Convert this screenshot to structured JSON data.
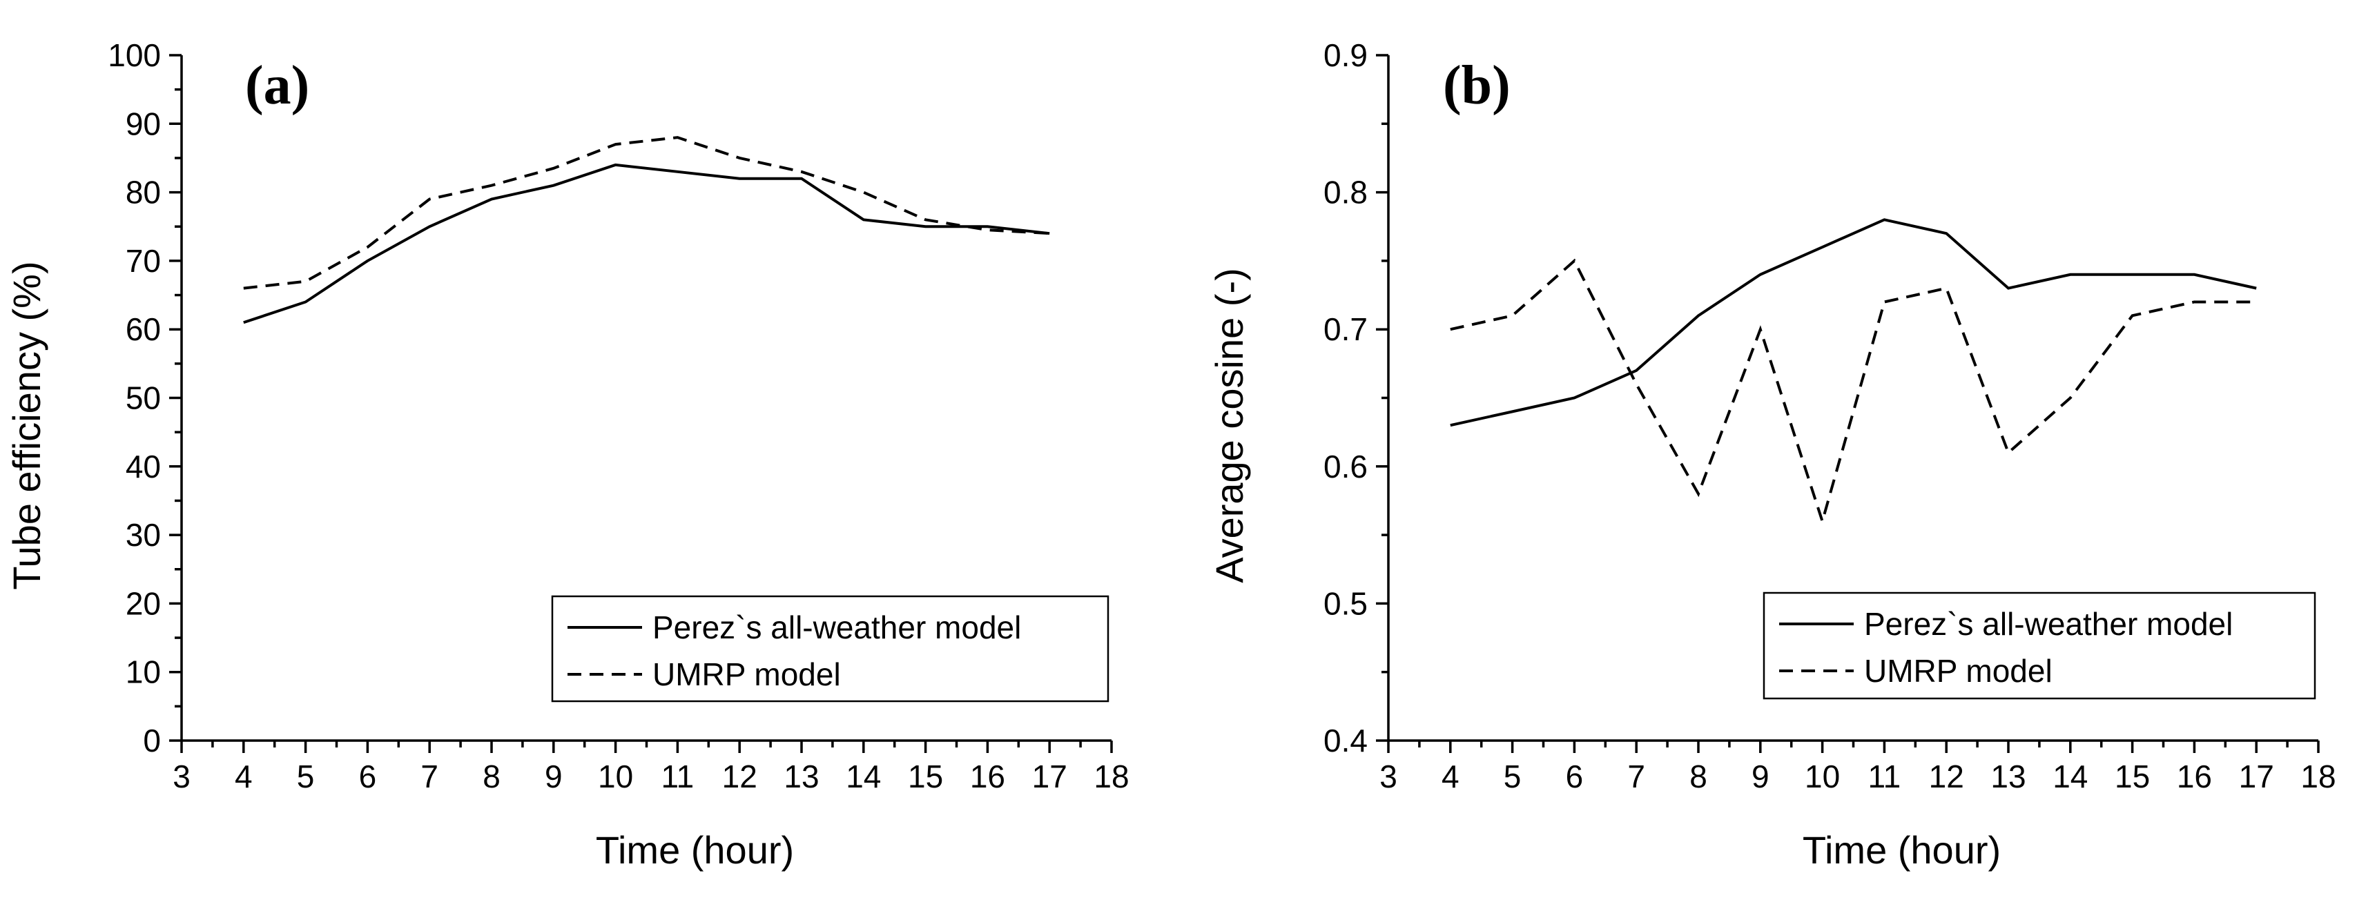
{
  "chart_data": [
    {
      "type": "line",
      "panel_label": "(a)",
      "xlabel": "Time (hour)",
      "ylabel": "Tube efficiency (%)",
      "xlim": [
        3,
        18
      ],
      "ylim": [
        0,
        100
      ],
      "x_ticks": [
        3,
        4,
        5,
        6,
        7,
        8,
        9,
        10,
        11,
        12,
        13,
        14,
        15,
        16,
        17,
        18
      ],
      "y_ticks": [
        0,
        10,
        20,
        30,
        40,
        50,
        60,
        70,
        80,
        90,
        100
      ],
      "y_tick_labels": [
        "0",
        "10",
        "20",
        "30",
        "40",
        "50",
        "60",
        "70",
        "80",
        "90",
        "100"
      ],
      "legend_position": "bottom-right",
      "series": [
        {
          "name": "Perez`s all-weather model",
          "style": "solid",
          "x": [
            4,
            5,
            6,
            7,
            8,
            9,
            10,
            11,
            12,
            13,
            14,
            15,
            16,
            17
          ],
          "values": [
            61,
            64,
            70,
            75,
            79,
            81,
            84,
            83,
            82,
            82,
            76,
            75,
            75,
            74
          ]
        },
        {
          "name": "UMRP model",
          "style": "dashed",
          "x": [
            4,
            5,
            6,
            7,
            8,
            9,
            10,
            11,
            12,
            13,
            14,
            15,
            16,
            17
          ],
          "values": [
            66,
            67,
            72,
            79,
            81,
            83.5,
            87,
            88,
            85,
            83,
            80,
            76,
            74.5,
            74
          ]
        }
      ]
    },
    {
      "type": "line",
      "panel_label": "(b)",
      "xlabel": "Time (hour)",
      "ylabel": "Average cosine (-)",
      "xlim": [
        3,
        18
      ],
      "ylim": [
        0.4,
        0.9
      ],
      "x_ticks": [
        3,
        4,
        5,
        6,
        7,
        8,
        9,
        10,
        11,
        12,
        13,
        14,
        15,
        16,
        17,
        18
      ],
      "y_ticks": [
        0.4,
        0.5,
        0.6,
        0.7,
        0.8,
        0.9
      ],
      "y_tick_labels": [
        "0.4",
        "0.5",
        "0.6",
        "0.7",
        "0.8",
        "0.9"
      ],
      "legend_position": "bottom-right",
      "series": [
        {
          "name": "Perez`s all-weather model",
          "style": "solid",
          "x": [
            4,
            5,
            6,
            7,
            8,
            9,
            10,
            11,
            12,
            13,
            14,
            15,
            16,
            17
          ],
          "values": [
            0.63,
            0.64,
            0.65,
            0.67,
            0.71,
            0.74,
            0.76,
            0.78,
            0.77,
            0.73,
            0.74,
            0.74,
            0.74,
            0.73
          ]
        },
        {
          "name": "UMRP model",
          "style": "dashed",
          "x": [
            4,
            5,
            6,
            7,
            8,
            9,
            10,
            11,
            12,
            13,
            14,
            15,
            16,
            17
          ],
          "values": [
            0.7,
            0.71,
            0.75,
            0.66,
            0.58,
            0.7,
            0.56,
            0.72,
            0.73,
            0.61,
            0.65,
            0.71,
            0.72,
            0.72
          ]
        }
      ]
    }
  ]
}
